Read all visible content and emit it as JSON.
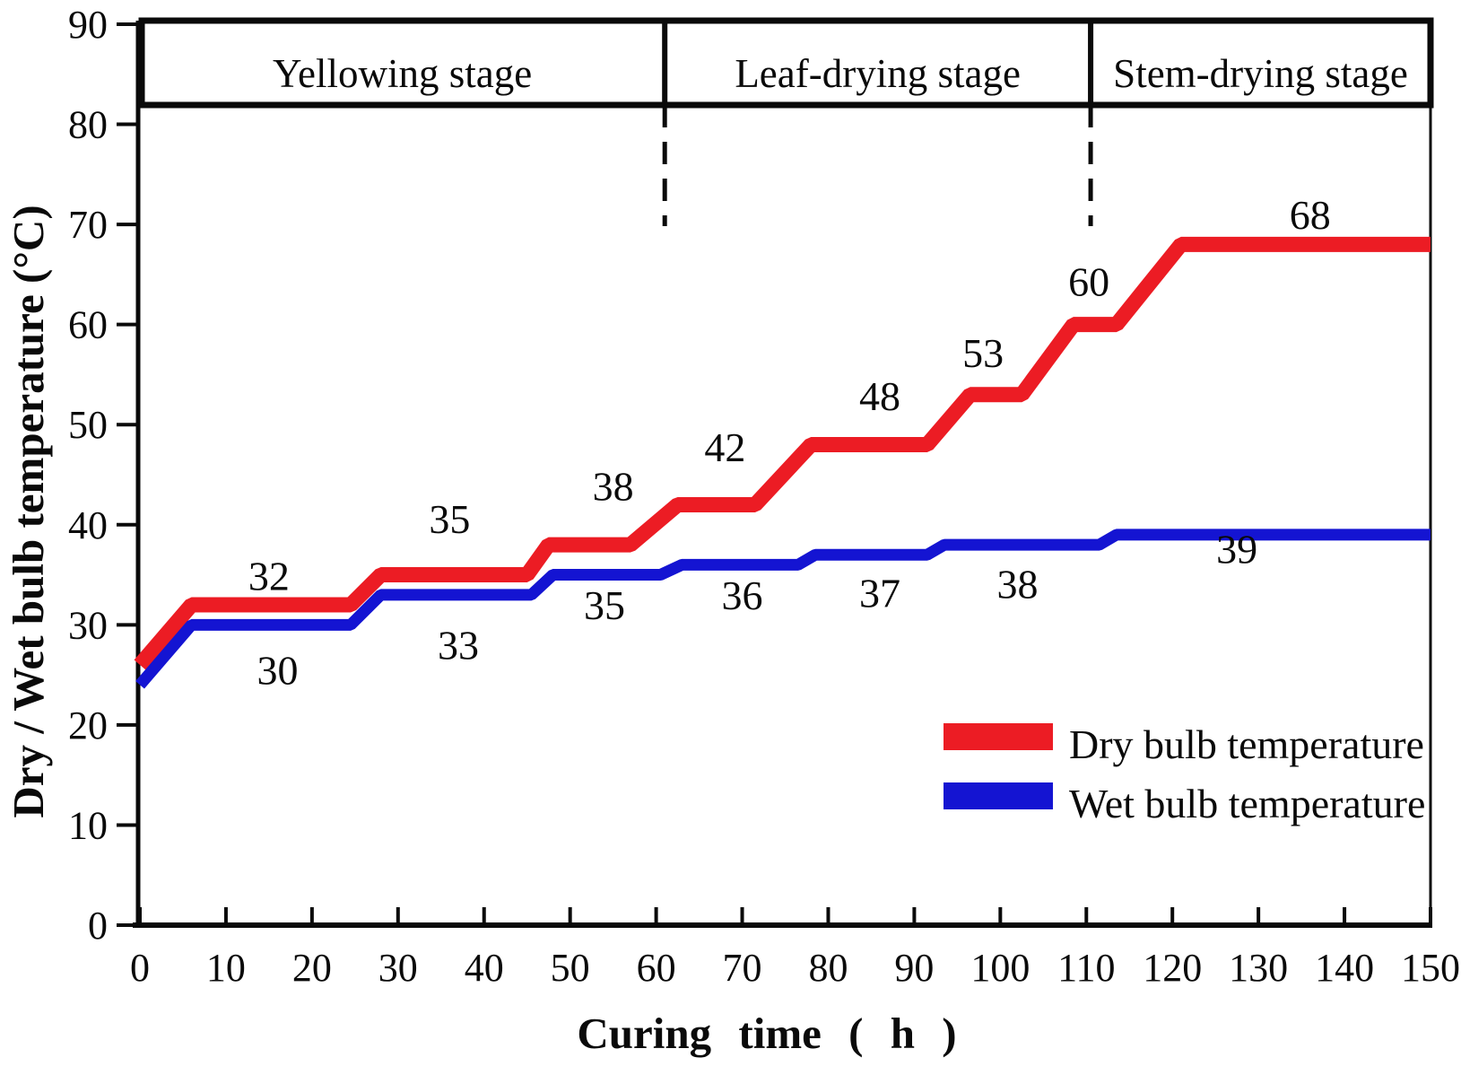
{
  "figure": {
    "background": "#ffffff",
    "axis_color": "#0a0a0a"
  },
  "legend": {
    "entries": [
      {
        "label": "Dry bulb temperature",
        "color": "#EC1C24"
      },
      {
        "label": "Wet bulb temperature",
        "color": "#1414D2"
      }
    ]
  },
  "chart_data": {
    "type": "line",
    "title": "",
    "xlabel": "Curing time ( h )",
    "ylabel": "Dry / Wet bulb temperature (°C)",
    "xlim": [
      0,
      150
    ],
    "ylim": [
      0,
      90
    ],
    "x_ticks": [
      0,
      10,
      20,
      30,
      40,
      50,
      60,
      70,
      80,
      90,
      100,
      110,
      120,
      130,
      140,
      150
    ],
    "y_ticks": [
      0,
      10,
      20,
      30,
      40,
      50,
      60,
      70,
      80,
      90
    ],
    "grid": "off",
    "legend_position": "lower right",
    "stages": [
      {
        "label": "Yellowing stage",
        "from": 0,
        "to": 61
      },
      {
        "label": "Leaf-drying stage",
        "from": 61,
        "to": 110.5
      },
      {
        "label": "Stem-drying stage",
        "from": 110.5,
        "to": 150
      }
    ],
    "stage_boundaries_h": [
      61,
      110.5
    ],
    "series": [
      {
        "name": "Dry bulb temperature",
        "color": "#EC1C24",
        "stroke_width": 17,
        "points": [
          [
            0,
            26
          ],
          [
            6,
            32
          ],
          [
            24.5,
            32
          ],
          [
            28,
            35
          ],
          [
            45,
            35
          ],
          [
            47.5,
            38
          ],
          [
            57,
            38
          ],
          [
            62.5,
            42
          ],
          [
            71.5,
            42
          ],
          [
            78,
            48
          ],
          [
            91.5,
            48
          ],
          [
            96.5,
            53
          ],
          [
            102.5,
            53
          ],
          [
            108.5,
            60
          ],
          [
            113.5,
            60
          ],
          [
            121,
            68
          ],
          [
            150,
            68
          ]
        ],
        "setpoint_labels": [
          {
            "value": "32",
            "t": 15,
            "T": 34.9
          },
          {
            "value": "35",
            "t": 36,
            "T": 40.6
          },
          {
            "value": "38",
            "t": 55,
            "T": 43.9
          },
          {
            "value": "42",
            "t": 68,
            "T": 47.8
          },
          {
            "value": "48",
            "t": 86,
            "T": 52.9
          },
          {
            "value": "53",
            "t": 98,
            "T": 57.2
          },
          {
            "value": "60",
            "t": 110.3,
            "T": 64.3
          },
          {
            "value": "68",
            "t": 136,
            "T": 71.0
          }
        ]
      },
      {
        "name": "Wet bulb temperature",
        "color": "#1414D2",
        "stroke_width": 13,
        "points": [
          [
            0,
            24
          ],
          [
            6,
            30
          ],
          [
            24.5,
            30
          ],
          [
            28,
            33
          ],
          [
            45.5,
            33
          ],
          [
            48,
            35
          ],
          [
            60.5,
            35
          ],
          [
            63,
            36
          ],
          [
            76.5,
            36
          ],
          [
            78.5,
            37
          ],
          [
            91.5,
            37
          ],
          [
            93.5,
            38
          ],
          [
            111.5,
            38
          ],
          [
            113.5,
            39
          ],
          [
            150,
            39
          ]
        ],
        "setpoint_labels": [
          {
            "value": "30",
            "t": 16,
            "T": 25.5
          },
          {
            "value": "33",
            "t": 37,
            "T": 28.0
          },
          {
            "value": "35",
            "t": 54,
            "T": 32.0
          },
          {
            "value": "36",
            "t": 70,
            "T": 33.0
          },
          {
            "value": "37",
            "t": 86,
            "T": 33.2
          },
          {
            "value": "38",
            "t": 102,
            "T": 34.1
          },
          {
            "value": "39",
            "t": 127.5,
            "T": 37.6
          }
        ]
      }
    ]
  }
}
